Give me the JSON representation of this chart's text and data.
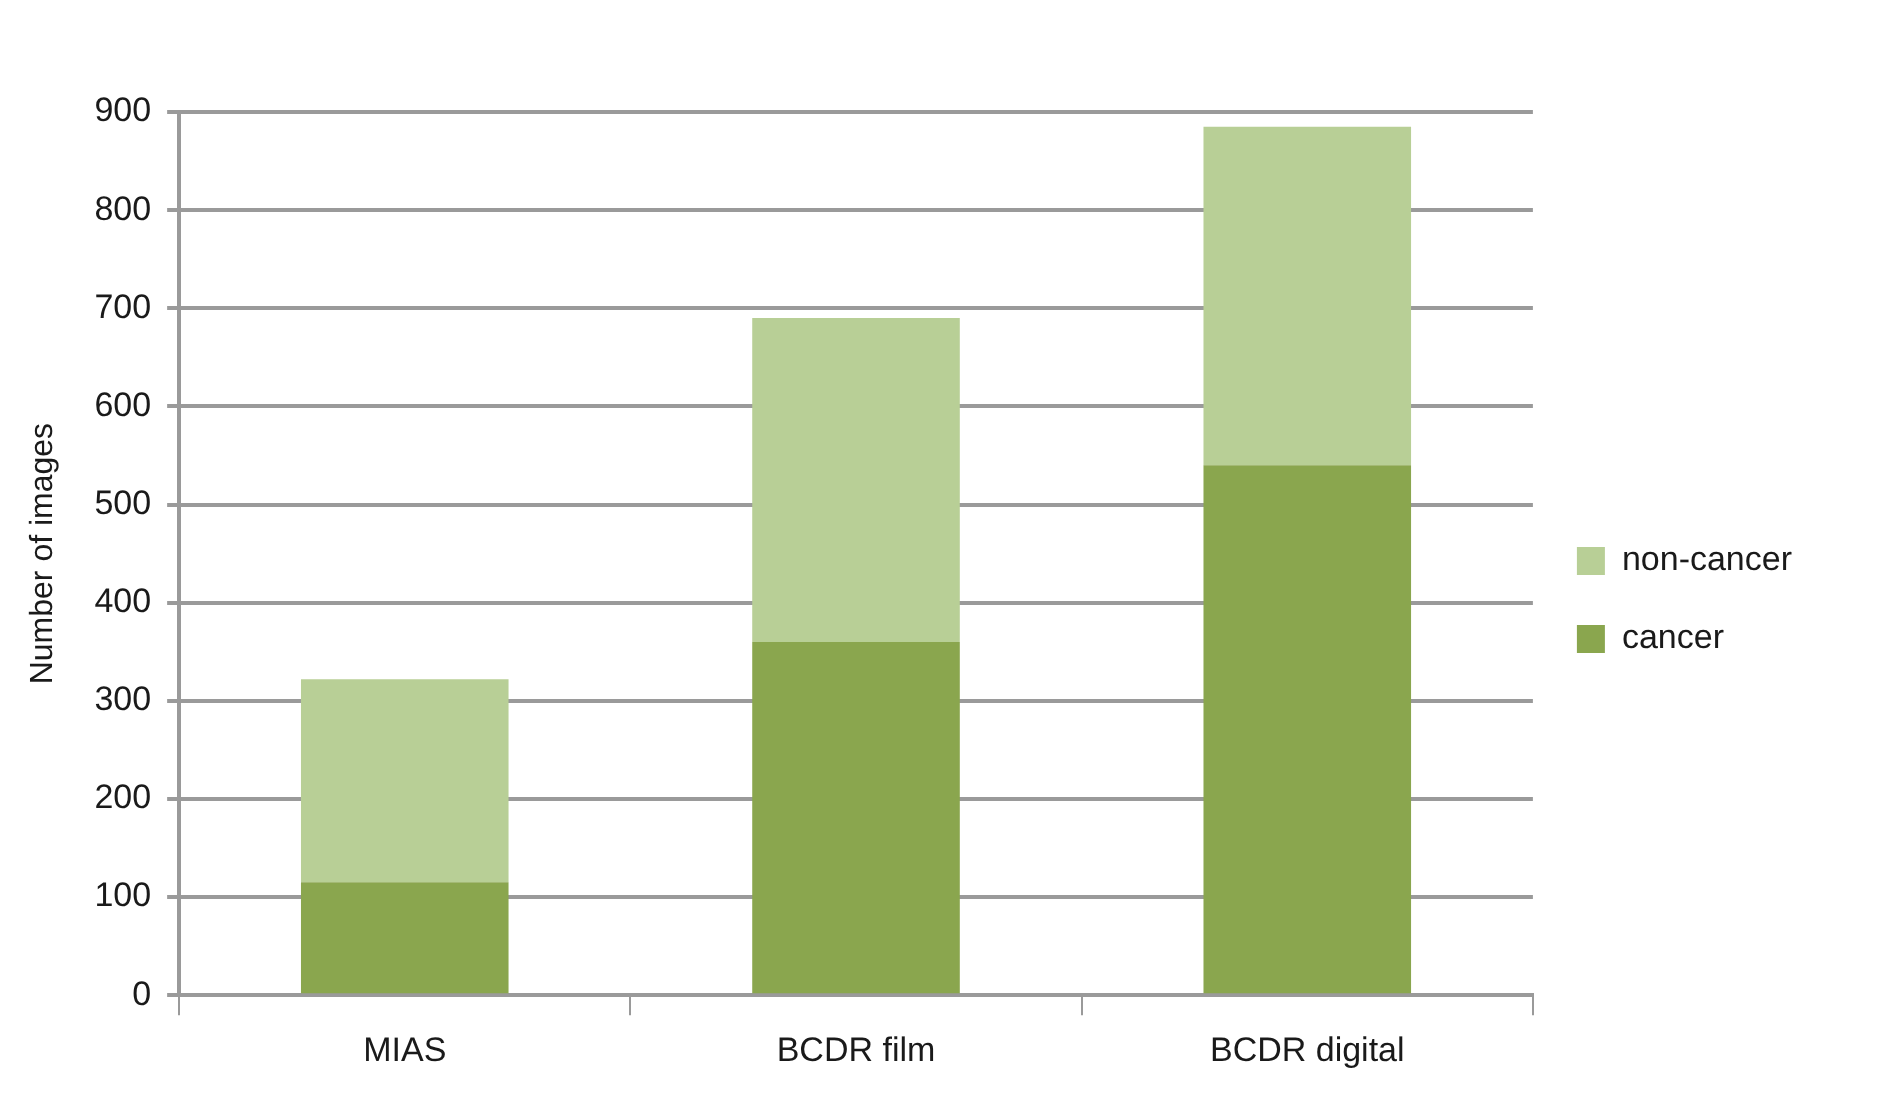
{
  "chart_data": {
    "type": "bar",
    "ylabel": "Number of images",
    "categories": [
      "MIAS",
      "BCDR film",
      "BCDR digital"
    ],
    "series": [
      {
        "name": "cancer",
        "color": "#8aa64e",
        "values": [
          115,
          360,
          540
        ]
      },
      {
        "name": "non-cancer",
        "color": "#b8cf96",
        "values": [
          207,
          330,
          345
        ]
      }
    ],
    "stacked": true,
    "ylim": [
      0,
      900
    ],
    "yticks": [
      0,
      100,
      200,
      300,
      400,
      500,
      600,
      700,
      800,
      900
    ],
    "grid": "y",
    "legend": "right"
  }
}
